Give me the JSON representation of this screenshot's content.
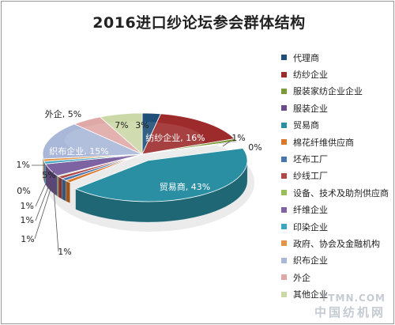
{
  "title": "2016进口纱论坛参会群体结构",
  "watermark": {
    "line1": "TTMN.COM",
    "line2": "中国纺机网"
  },
  "chart_data": {
    "type": "pie",
    "subtype": "3d-exploded",
    "title": "2016进口纱论坛参会群体结构",
    "legend_position": "right",
    "categories": [
      "代理商",
      "纺纱企业",
      "服装家纺企业企业",
      "服装企业",
      "贸易商",
      "棉花纤维供应商",
      "坯布工厂",
      "纱线工厂",
      "设备、技术及助剂供应商",
      "纤维企业",
      "印染企业",
      "政府、协会及金融机构",
      "织布企业",
      "外企",
      "其他企业"
    ],
    "values": [
      3,
      16,
      1,
      0,
      43,
      1,
      1,
      1,
      0,
      5,
      1,
      1,
      15,
      5,
      7
    ],
    "data_labels": [
      "3%",
      "纺纱企业, 16%",
      "1%",
      "0%",
      "贸易商, 43%",
      "1%",
      "1%",
      "1%",
      "0%",
      "5%",
      "1%",
      "1%",
      "织布企业, 15%",
      "外企, 5%",
      "7%"
    ],
    "colors": [
      "#1F4E79",
      "#9E2B2B",
      "#7A9A3A",
      "#6A4C8C",
      "#2B8FA3",
      "#D9782A",
      "#4A76AE",
      "#B14848",
      "#9ABE57",
      "#7E63A3",
      "#3BA6C0",
      "#E49446",
      "#A9B8D8",
      "#DFA9A7",
      "#CBD8A8"
    ]
  }
}
